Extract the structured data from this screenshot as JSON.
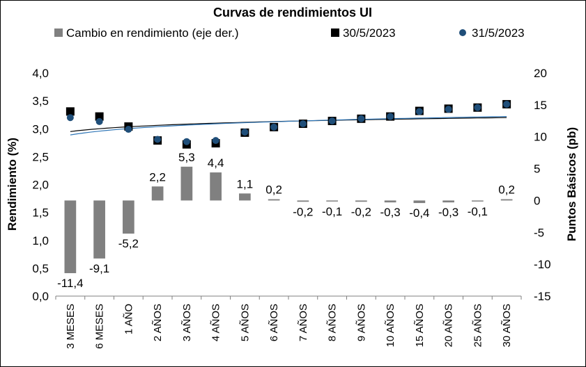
{
  "chart_data": {
    "type": "bar+scatter",
    "title": "Curvas de rendimientos UI",
    "ylabel": "Rendimiento (%)",
    "y2label": "Puntos Básicos (pb)",
    "ylim": [
      0,
      4
    ],
    "y2lim": [
      -15,
      20
    ],
    "yticks": [
      "0,0",
      "0,5",
      "1,0",
      "1,5",
      "2,0",
      "2,5",
      "3,0",
      "3,5",
      "4,0"
    ],
    "y2ticks": [
      "-15",
      "-10",
      "-5",
      "0",
      "5",
      "10",
      "15",
      "20"
    ],
    "categories": [
      "3 MESES",
      "6 MESES",
      "1 AÑO",
      "2 AÑOS",
      "3 AÑOS",
      "4 AÑOS",
      "5 AÑOS",
      "6 AÑOS",
      "7 AÑOS",
      "8 AÑOS",
      "9 AÑOS",
      "10 AÑOS",
      "15 AÑOS",
      "20 AÑOS",
      "25 AÑOS",
      "30 AÑOS"
    ],
    "series": [
      {
        "name": "Cambio en rendimiento (eje der.)",
        "kind": "bar",
        "axis": "right",
        "color": "#808080",
        "values": [
          -11.4,
          -9.1,
          -5.2,
          2.2,
          5.3,
          4.4,
          1.1,
          0.2,
          -0.2,
          -0.1,
          -0.2,
          -0.3,
          -0.4,
          -0.3,
          -0.1,
          0.2
        ],
        "labels": [
          "-11,4",
          "-9,1",
          "-5,2",
          "2,2",
          "5,3",
          "4,4",
          "1,1",
          "0,2",
          "-0,2",
          "-0,1",
          "-0,2",
          "-0,3",
          "-0,4",
          "-0,3",
          "-0,1",
          "0,2"
        ]
      },
      {
        "name": "30/5/2023",
        "kind": "scatter-square",
        "axis": "left",
        "color": "#000000",
        "values": [
          3.31,
          3.22,
          3.04,
          2.79,
          2.72,
          2.74,
          2.93,
          3.03,
          3.09,
          3.14,
          3.18,
          3.22,
          3.32,
          3.36,
          3.38,
          3.44
        ]
      },
      {
        "name": "31/5/2023",
        "kind": "scatter-circle",
        "axis": "left",
        "color": "#1f4e79",
        "values": [
          3.2,
          3.13,
          2.99,
          2.81,
          2.77,
          2.79,
          2.94,
          3.03,
          3.09,
          3.14,
          3.18,
          3.22,
          3.31,
          3.35,
          3.38,
          3.44
        ]
      }
    ],
    "trendlines": [
      {
        "series": "30/5/2023",
        "color": "#000000",
        "start": 2.95,
        "end": 3.2
      },
      {
        "series": "31/5/2023",
        "color": "#2e75b6",
        "start": 2.89,
        "end": 3.22
      }
    ],
    "legend_position": "top",
    "grid": false
  }
}
